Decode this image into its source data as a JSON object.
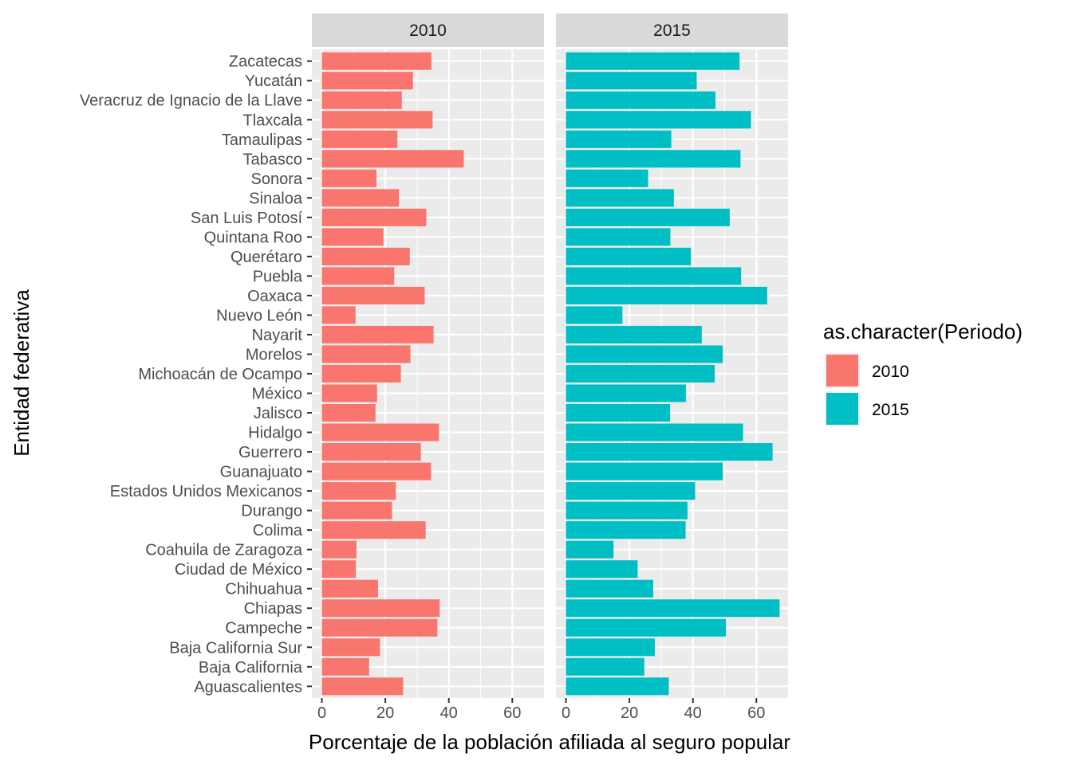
{
  "chart_data": {
    "type": "bar",
    "orientation": "horizontal",
    "facet_by": "Periodo",
    "xlabel": "Porcentaje de la población afiliada al seguro popular",
    "ylabel": "Entidad federativa",
    "xlim": [
      0,
      70
    ],
    "xticks": [
      0,
      20,
      40,
      60
    ],
    "categories": [
      "Zacatecas",
      "Yucatán",
      "Veracruz de Ignacio de la Llave",
      "Tlaxcala",
      "Tamaulipas",
      "Tabasco",
      "Sonora",
      "Sinaloa",
      "San Luis Potosí",
      "Quintana Roo",
      "Querétaro",
      "Puebla",
      "Oaxaca",
      "Nuevo León",
      "Nayarit",
      "Morelos",
      "Michoacán de Ocampo",
      "México",
      "Jalisco",
      "Hidalgo",
      "Guerrero",
      "Guanajuato",
      "Estados Unidos Mexicanos",
      "Durango",
      "Colima",
      "Coahuila de Zaragoza",
      "Ciudad de México",
      "Chihuahua",
      "Chiapas",
      "Campeche",
      "Baja California Sur",
      "Baja California",
      "Aguascalientes"
    ],
    "series": [
      {
        "name": "2010",
        "color": "#F8766D",
        "values": [
          34.5,
          28.7,
          25.2,
          34.9,
          23.8,
          44.7,
          17.2,
          24.3,
          32.9,
          19.4,
          27.7,
          22.8,
          32.4,
          10.6,
          35.2,
          27.9,
          24.9,
          17.4,
          16.9,
          36.9,
          31.2,
          34.4,
          23.3,
          22.1,
          32.7,
          10.9,
          10.7,
          17.7,
          37.1,
          36.4,
          18.3,
          14.9,
          25.6
        ]
      },
      {
        "name": "2015",
        "color": "#00BFC4",
        "values": [
          54.7,
          41.2,
          47.1,
          58.3,
          33.2,
          55.0,
          25.9,
          34.0,
          51.6,
          32.9,
          39.4,
          55.2,
          63.4,
          17.8,
          42.8,
          49.4,
          46.9,
          37.8,
          32.8,
          55.8,
          65.1,
          49.4,
          40.7,
          38.3,
          37.7,
          15.0,
          22.6,
          27.5,
          67.3,
          50.4,
          28.0,
          24.7,
          32.4
        ]
      }
    ],
    "legend": {
      "title": "as.character(Periodo)",
      "placement": "right",
      "entries": [
        "2010",
        "2015"
      ]
    },
    "grid": true
  }
}
